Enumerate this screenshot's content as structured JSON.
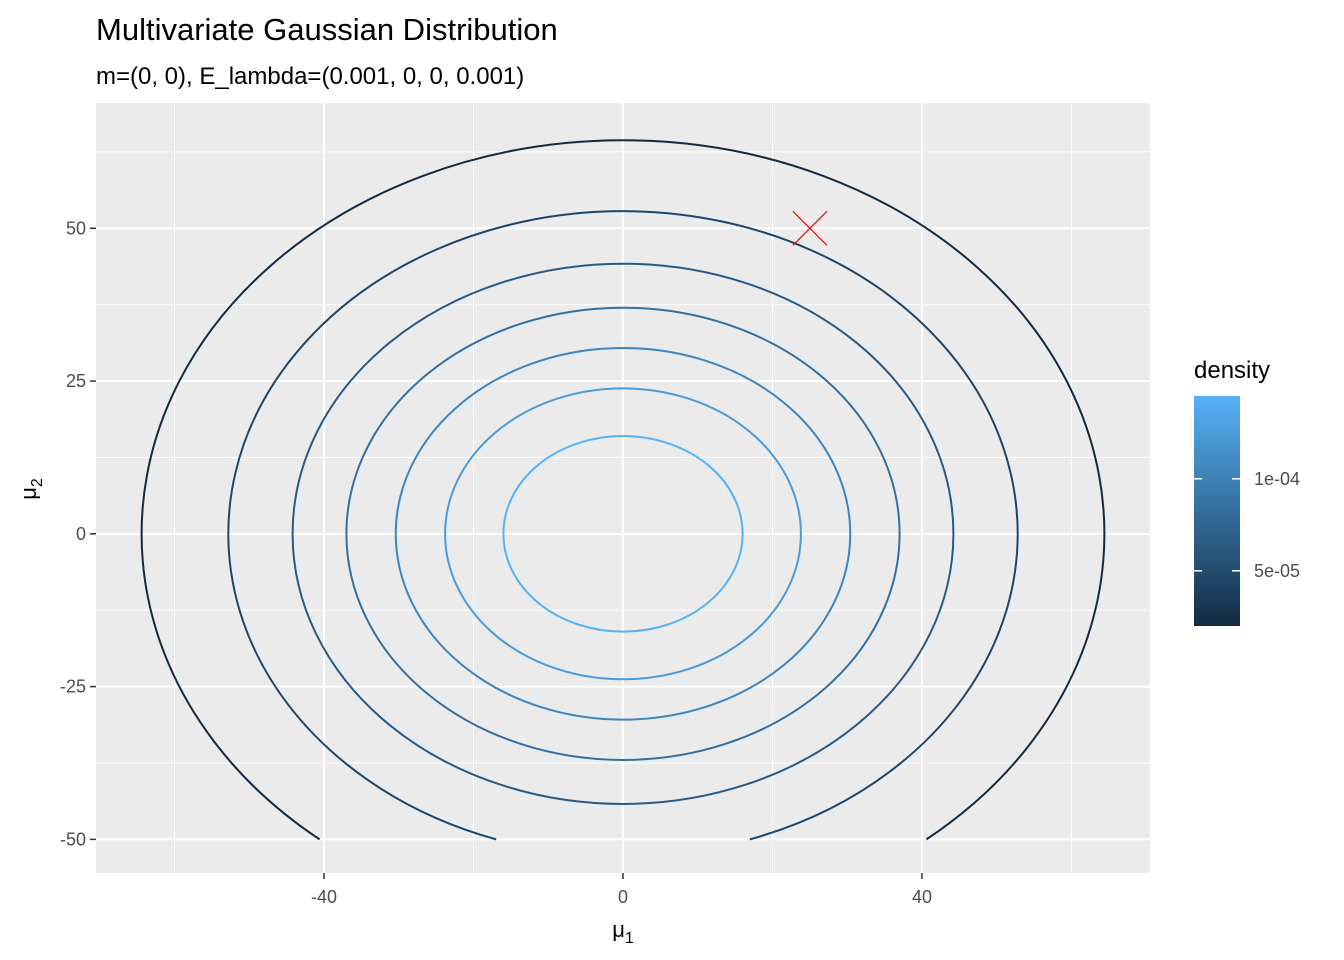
{
  "chart_data": {
    "type": "contour",
    "title": "Multivariate Gaussian Distribution",
    "subtitle": "m=(0, 0), E_lambda=(0.001, 0, 0, 0.001)",
    "xlabel": {
      "base": "μ",
      "sub": "1"
    },
    "ylabel": {
      "base": "μ",
      "sub": "2"
    },
    "xlim": [
      -70.5,
      70.5
    ],
    "ylim": [
      -55.5,
      70.5
    ],
    "x_ticks": [
      -40,
      0,
      40
    ],
    "x_tick_labels": [
      "-40",
      "0",
      "40"
    ],
    "y_ticks": [
      -50,
      -25,
      0,
      25,
      50
    ],
    "y_tick_labels": [
      "-50",
      "-25",
      "0",
      "25",
      "50"
    ],
    "grid": true,
    "contours": [
      {
        "rx": 16.0,
        "ry": 16.0,
        "color": "#56B1F7"
      },
      {
        "rx": 23.8,
        "ry": 23.8,
        "color": "#4A9AD9"
      },
      {
        "rx": 30.4,
        "ry": 30.4,
        "color": "#3E85BE"
      },
      {
        "rx": 37.0,
        "ry": 37.0,
        "color": "#336FA2"
      },
      {
        "rx": 44.2,
        "ry": 44.2,
        "color": "#285A86"
      },
      {
        "rx": 52.8,
        "ry": 52.8,
        "color": "#1E466A"
      },
      {
        "rx": 64.4,
        "ry": 64.4,
        "color": "#132B43"
      }
    ],
    "marker": {
      "x": 25,
      "y": 50,
      "shape": "cross",
      "color": "#ff0000"
    },
    "legend": {
      "title": "density",
      "position": "right",
      "gradient_low": "#132B43",
      "gradient_high": "#56B1F7",
      "range": [
        2e-05,
        0.000145
      ],
      "ticks": [
        5e-05,
        0.0001
      ],
      "tick_labels": [
        "5e-05",
        "1e-04"
      ]
    }
  }
}
